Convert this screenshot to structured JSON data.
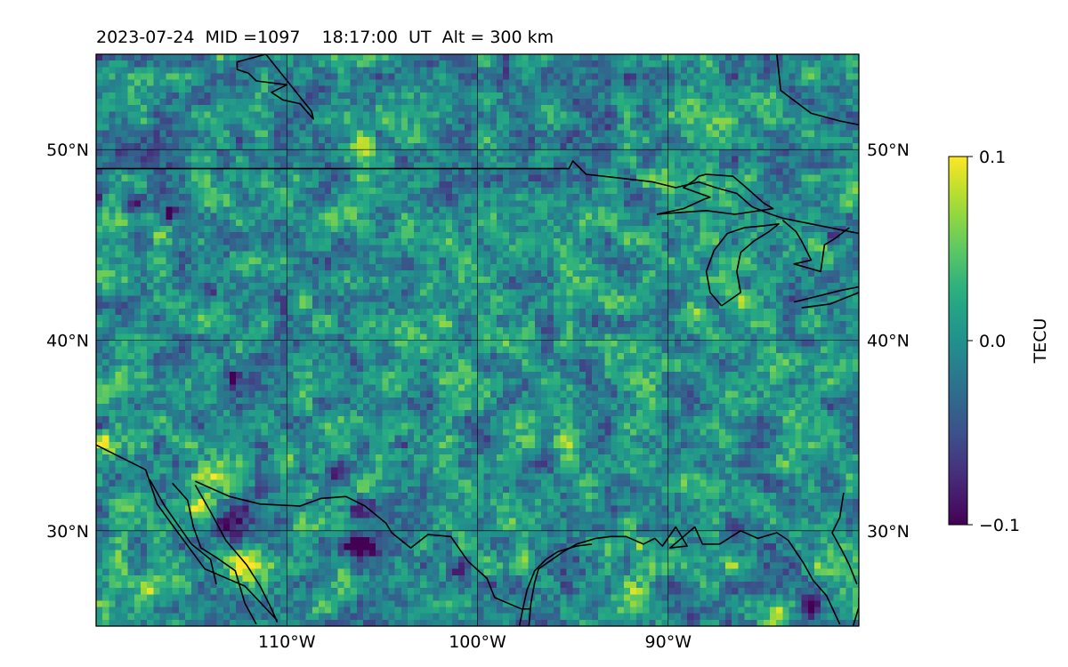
{
  "chart_data": {
    "type": "heatmap",
    "title": "2023-07-24  MID =1097    18:17:00  UT  Alt = 300 km",
    "projection": "map (longitude/latitude)",
    "lon_range": [
      -120,
      -80
    ],
    "lat_range": [
      25,
      55
    ],
    "x_ticks": [
      -110,
      -100,
      -90
    ],
    "x_tick_labels": [
      "110°W",
      "100°W",
      "90°W"
    ],
    "y_ticks": [
      30,
      40,
      50
    ],
    "y_tick_labels": [
      "30°N",
      "40°N",
      "50°N"
    ],
    "grid": true,
    "colormap": "viridis",
    "colorbar": {
      "label": "TECU",
      "vmin": -0.1,
      "vmax": 0.1,
      "ticks": [
        0.1,
        0.0,
        -0.1
      ],
      "tick_labels": [
        "0.1",
        "0.0",
        "−0.1"
      ],
      "colors": [
        "#440154",
        "#3b528b",
        "#21918c",
        "#5ec962",
        "#fde725"
      ]
    },
    "field_background_value": 0.0,
    "features": [
      {
        "lon": -106.0,
        "lat": 50.3,
        "value": 0.1,
        "radius_deg": 0.5
      },
      {
        "lon": -114.4,
        "lat": 32.9,
        "value": 0.1,
        "radius_deg": 0.7
      },
      {
        "lon": -114.5,
        "lat": 31.3,
        "value": 0.09,
        "radius_deg": 0.6
      },
      {
        "lon": -112.4,
        "lat": 28.2,
        "value": 0.1,
        "radius_deg": 1.1
      },
      {
        "lon": -110.0,
        "lat": 33.6,
        "value": 0.07,
        "radius_deg": 0.5
      },
      {
        "lon": -108.9,
        "lat": 32.2,
        "value": 0.08,
        "radius_deg": 0.4
      },
      {
        "lon": -112.8,
        "lat": 30.2,
        "value": -0.1,
        "radius_deg": 0.9
      },
      {
        "lon": -107.3,
        "lat": 33.2,
        "value": -0.09,
        "radius_deg": 0.6
      },
      {
        "lon": -106.2,
        "lat": 29.2,
        "value": -0.1,
        "radius_deg": 0.8
      },
      {
        "lon": -106.2,
        "lat": 31.0,
        "value": -0.07,
        "radius_deg": 0.6
      },
      {
        "lon": -111.4,
        "lat": 31.8,
        "value": -0.07,
        "radius_deg": 0.5
      },
      {
        "lon": -118.1,
        "lat": 47.2,
        "value": -0.09,
        "radius_deg": 0.5
      },
      {
        "lon": -116.1,
        "lat": 46.6,
        "value": -0.09,
        "radius_deg": 0.4
      },
      {
        "lon": -120.0,
        "lat": 47.5,
        "value": -0.08,
        "radius_deg": 0.4
      },
      {
        "lon": -116.6,
        "lat": 45.5,
        "value": 0.07,
        "radius_deg": 0.4
      },
      {
        "lon": -114.1,
        "lat": 42.6,
        "value": -0.08,
        "radius_deg": 0.3
      },
      {
        "lon": -103.9,
        "lat": 34.6,
        "value": -0.09,
        "radius_deg": 0.4
      },
      {
        "lon": -101.3,
        "lat": 28.0,
        "value": -0.06,
        "radius_deg": 0.6
      },
      {
        "lon": -99.5,
        "lat": 27.2,
        "value": -0.06,
        "radius_deg": 0.5
      },
      {
        "lon": -97.7,
        "lat": 28.8,
        "value": 0.06,
        "radius_deg": 0.5
      },
      {
        "lon": -91.8,
        "lat": 26.7,
        "value": 0.06,
        "radius_deg": 1.0
      },
      {
        "lon": -89.0,
        "lat": 25.6,
        "value": -0.06,
        "radius_deg": 0.7
      },
      {
        "lon": -84.3,
        "lat": 25.7,
        "value": 0.1,
        "radius_deg": 0.6
      },
      {
        "lon": -82.6,
        "lat": 26.1,
        "value": -0.07,
        "radius_deg": 0.6
      },
      {
        "lon": -82.2,
        "lat": 45.0,
        "value": 0.09,
        "radius_deg": 0.5
      },
      {
        "lon": -81.2,
        "lat": 45.5,
        "value": -0.07,
        "radius_deg": 0.4
      },
      {
        "lon": -82.8,
        "lat": 44.0,
        "value": -0.06,
        "radius_deg": 0.4
      },
      {
        "lon": -91.3,
        "lat": 29.3,
        "value": 0.08,
        "radius_deg": 0.4
      },
      {
        "lon": -88.6,
        "lat": 41.5,
        "value": 0.06,
        "radius_deg": 0.4
      },
      {
        "lon": -85.6,
        "lat": 32.1,
        "value": 0.07,
        "radius_deg": 0.4
      },
      {
        "lon": -82.0,
        "lat": 27.9,
        "value": 0.06,
        "radius_deg": 0.4
      },
      {
        "lon": -86.6,
        "lat": 28.2,
        "value": 0.06,
        "radius_deg": 0.4
      },
      {
        "lon": -86.0,
        "lat": 42.1,
        "value": 0.05,
        "radius_deg": 0.5
      },
      {
        "lon": -91.0,
        "lat": 48.5,
        "value": 0.06,
        "radius_deg": 0.5
      },
      {
        "lon": -87.8,
        "lat": 51.5,
        "value": 0.06,
        "radius_deg": 0.8
      },
      {
        "lon": -119.5,
        "lat": 34.5,
        "value": 0.07,
        "radius_deg": 0.5
      },
      {
        "lon": -106.4,
        "lat": 38.8,
        "value": -0.06,
        "radius_deg": 0.5
      },
      {
        "lon": -112.8,
        "lat": 38.0,
        "value": -0.06,
        "radius_deg": 0.5
      },
      {
        "lon": -101.4,
        "lat": 36.3,
        "value": 0.05,
        "radius_deg": 0.5
      },
      {
        "lon": -95.0,
        "lat": 34.8,
        "value": 0.05,
        "radius_deg": 0.6
      },
      {
        "lon": -117.3,
        "lat": 26.8,
        "value": 0.06,
        "radius_deg": 0.5
      },
      {
        "lon": -99.3,
        "lat": 44.5,
        "value": -0.05,
        "radius_deg": 0.6
      },
      {
        "lon": -93.0,
        "lat": 37.5,
        "value": -0.05,
        "radius_deg": 0.5
      }
    ],
    "coastlines": [
      [
        [
          -120.0,
          49.0
        ],
        [
          -95.2,
          49.0
        ],
        [
          -95.0,
          49.4
        ],
        [
          -94.3,
          48.7
        ],
        [
          -92.5,
          48.5
        ],
        [
          -90.8,
          48.3
        ],
        [
          -89.6,
          48.0
        ],
        [
          -88.4,
          48.3
        ],
        [
          -87.5,
          48.0
        ],
        [
          -86.4,
          47.7
        ],
        [
          -85.6,
          47.0
        ],
        [
          -84.6,
          46.6
        ],
        [
          -84.0,
          46.4
        ],
        [
          -82.5,
          46.1
        ],
        [
          -80.0,
          45.6
        ]
      ],
      [
        [
          -90.6,
          46.6
        ],
        [
          -89.2,
          46.9
        ],
        [
          -88.1,
          47.4
        ],
        [
          -87.8,
          47.5
        ],
        [
          -89.2,
          48.0
        ],
        [
          -88.6,
          48.4
        ],
        [
          -88.4,
          48.6
        ],
        [
          -88.0,
          48.7
        ],
        [
          -86.6,
          48.6
        ],
        [
          -85.9,
          48.0
        ],
        [
          -85.0,
          47.2
        ],
        [
          -84.5,
          46.9
        ],
        [
          -86.5,
          46.6
        ],
        [
          -88.0,
          46.8
        ],
        [
          -89.4,
          46.7
        ],
        [
          -90.6,
          46.6
        ]
      ],
      [
        [
          -87.2,
          41.8
        ],
        [
          -87.8,
          42.5
        ],
        [
          -88.0,
          43.6
        ],
        [
          -87.6,
          44.7
        ],
        [
          -86.9,
          45.6
        ],
        [
          -86.0,
          45.9
        ],
        [
          -85.0,
          46.0
        ],
        [
          -84.2,
          46.1
        ],
        [
          -84.7,
          45.7
        ],
        [
          -85.5,
          45.2
        ],
        [
          -86.2,
          44.6
        ],
        [
          -86.4,
          43.6
        ],
        [
          -86.2,
          42.5
        ],
        [
          -87.2,
          41.8
        ]
      ],
      [
        [
          -84.0,
          46.3
        ],
        [
          -83.3,
          45.7
        ],
        [
          -83.0,
          45.2
        ],
        [
          -82.8,
          44.8
        ],
        [
          -82.5,
          44.2
        ],
        [
          -83.4,
          44.0
        ],
        [
          -82.0,
          43.6
        ],
        [
          -81.8,
          45.0
        ],
        [
          -81.3,
          45.3
        ],
        [
          -80.5,
          45.9
        ]
      ],
      [
        [
          -83.4,
          42.0
        ],
        [
          -81.0,
          42.6
        ],
        [
          -80.0,
          42.8
        ]
      ],
      [
        [
          -83.0,
          41.7
        ],
        [
          -81.5,
          41.9
        ],
        [
          -80.0,
          42.5
        ]
      ],
      [
        [
          -112.6,
          54.6
        ],
        [
          -111.1,
          55.0
        ],
        [
          -110.3,
          54.0
        ],
        [
          -108.7,
          52.0
        ],
        [
          -108.6,
          51.6
        ],
        [
          -109.3,
          52.4
        ],
        [
          -110.2,
          52.6
        ],
        [
          -110.8,
          53.0
        ],
        [
          -110.0,
          53.4
        ],
        [
          -111.6,
          53.6
        ],
        [
          -112.0,
          54.0
        ],
        [
          -112.6,
          54.2
        ],
        [
          -112.6,
          54.6
        ]
      ],
      [
        [
          -84.3,
          55.0
        ],
        [
          -84.1,
          53.1
        ],
        [
          -82.5,
          51.9
        ],
        [
          -81.0,
          51.5
        ],
        [
          -80.0,
          51.3
        ]
      ],
      [
        [
          -120.0,
          34.5
        ],
        [
          -117.4,
          33.2
        ],
        [
          -116.8,
          31.4
        ],
        [
          -116.0,
          30.3
        ],
        [
          -114.3,
          28.0
        ],
        [
          -112.2,
          27.1
        ],
        [
          -110.5,
          25.3
        ]
      ],
      [
        [
          -114.8,
          32.6
        ],
        [
          -113.0,
          31.8
        ],
        [
          -111.4,
          31.4
        ],
        [
          -109.3,
          31.3
        ],
        [
          -108.2,
          31.7
        ],
        [
          -106.9,
          31.8
        ],
        [
          -105.9,
          31.3
        ],
        [
          -104.8,
          30.4
        ],
        [
          -104.5,
          29.9
        ],
        [
          -103.5,
          29.1
        ],
        [
          -102.6,
          29.8
        ],
        [
          -101.4,
          29.7
        ],
        [
          -100.5,
          28.4
        ],
        [
          -99.5,
          27.5
        ],
        [
          -99.1,
          26.5
        ],
        [
          -97.7,
          25.9
        ],
        [
          -97.2,
          25.9
        ]
      ],
      [
        [
          -114.8,
          32.4
        ],
        [
          -114.0,
          31.0
        ],
        [
          -113.2,
          29.5
        ],
        [
          -112.1,
          28.2
        ],
        [
          -111.4,
          27.1
        ],
        [
          -110.8,
          25.9
        ],
        [
          -110.5,
          25.2
        ]
      ],
      [
        [
          -116.0,
          32.5
        ],
        [
          -115.2,
          31.6
        ],
        [
          -114.9,
          30.2
        ],
        [
          -114.5,
          29.1
        ],
        [
          -113.7,
          28.6
        ],
        [
          -112.7,
          27.9
        ],
        [
          -112.2,
          26.2
        ],
        [
          -111.6,
          25.1
        ]
      ],
      [
        [
          -117.2,
          32.7
        ],
        [
          -116.4,
          31.3
        ],
        [
          -115.0,
          29.3
        ],
        [
          -114.0,
          28.5
        ],
        [
          -113.7,
          27.2
        ]
      ],
      [
        [
          -97.3,
          25.0
        ],
        [
          -97.2,
          26.2
        ],
        [
          -97.0,
          27.3
        ],
        [
          -96.8,
          28.0
        ],
        [
          -95.5,
          28.9
        ],
        [
          -94.8,
          29.3
        ],
        [
          -93.8,
          29.6
        ],
        [
          -93.0,
          29.7
        ],
        [
          -92.2,
          29.7
        ],
        [
          -91.3,
          29.3
        ],
        [
          -90.7,
          29.6
        ],
        [
          -90.3,
          29.2
        ],
        [
          -89.6,
          30.2
        ],
        [
          -89.0,
          29.2
        ],
        [
          -89.9,
          29.1
        ],
        [
          -88.6,
          30.2
        ],
        [
          -88.2,
          29.3
        ],
        [
          -87.3,
          29.3
        ],
        [
          -86.2,
          30.0
        ],
        [
          -85.3,
          29.6
        ],
        [
          -84.3,
          29.9
        ],
        [
          -83.7,
          29.5
        ],
        [
          -82.9,
          28.3
        ],
        [
          -82.4,
          27.4
        ],
        [
          -81.7,
          26.6
        ],
        [
          -81.0,
          25.1
        ]
      ],
      [
        [
          -80.3,
          25.0
        ],
        [
          -80.0,
          26.0
        ],
        [
          -80.0,
          26.5
        ]
      ],
      [
        [
          -97.8,
          25.0
        ],
        [
          -97.6,
          26.0
        ],
        [
          -97.4,
          26.9
        ],
        [
          -97.0,
          27.9
        ],
        [
          -96.4,
          28.5
        ],
        [
          -95.8,
          28.9
        ],
        [
          -94.8,
          29.2
        ],
        [
          -94.0,
          29.3
        ]
      ],
      [
        [
          -80.8,
          32.0
        ],
        [
          -81.0,
          30.7
        ],
        [
          -81.4,
          29.9
        ],
        [
          -80.9,
          29.0
        ],
        [
          -80.5,
          28.2
        ],
        [
          -80.1,
          27.2
        ]
      ]
    ]
  }
}
